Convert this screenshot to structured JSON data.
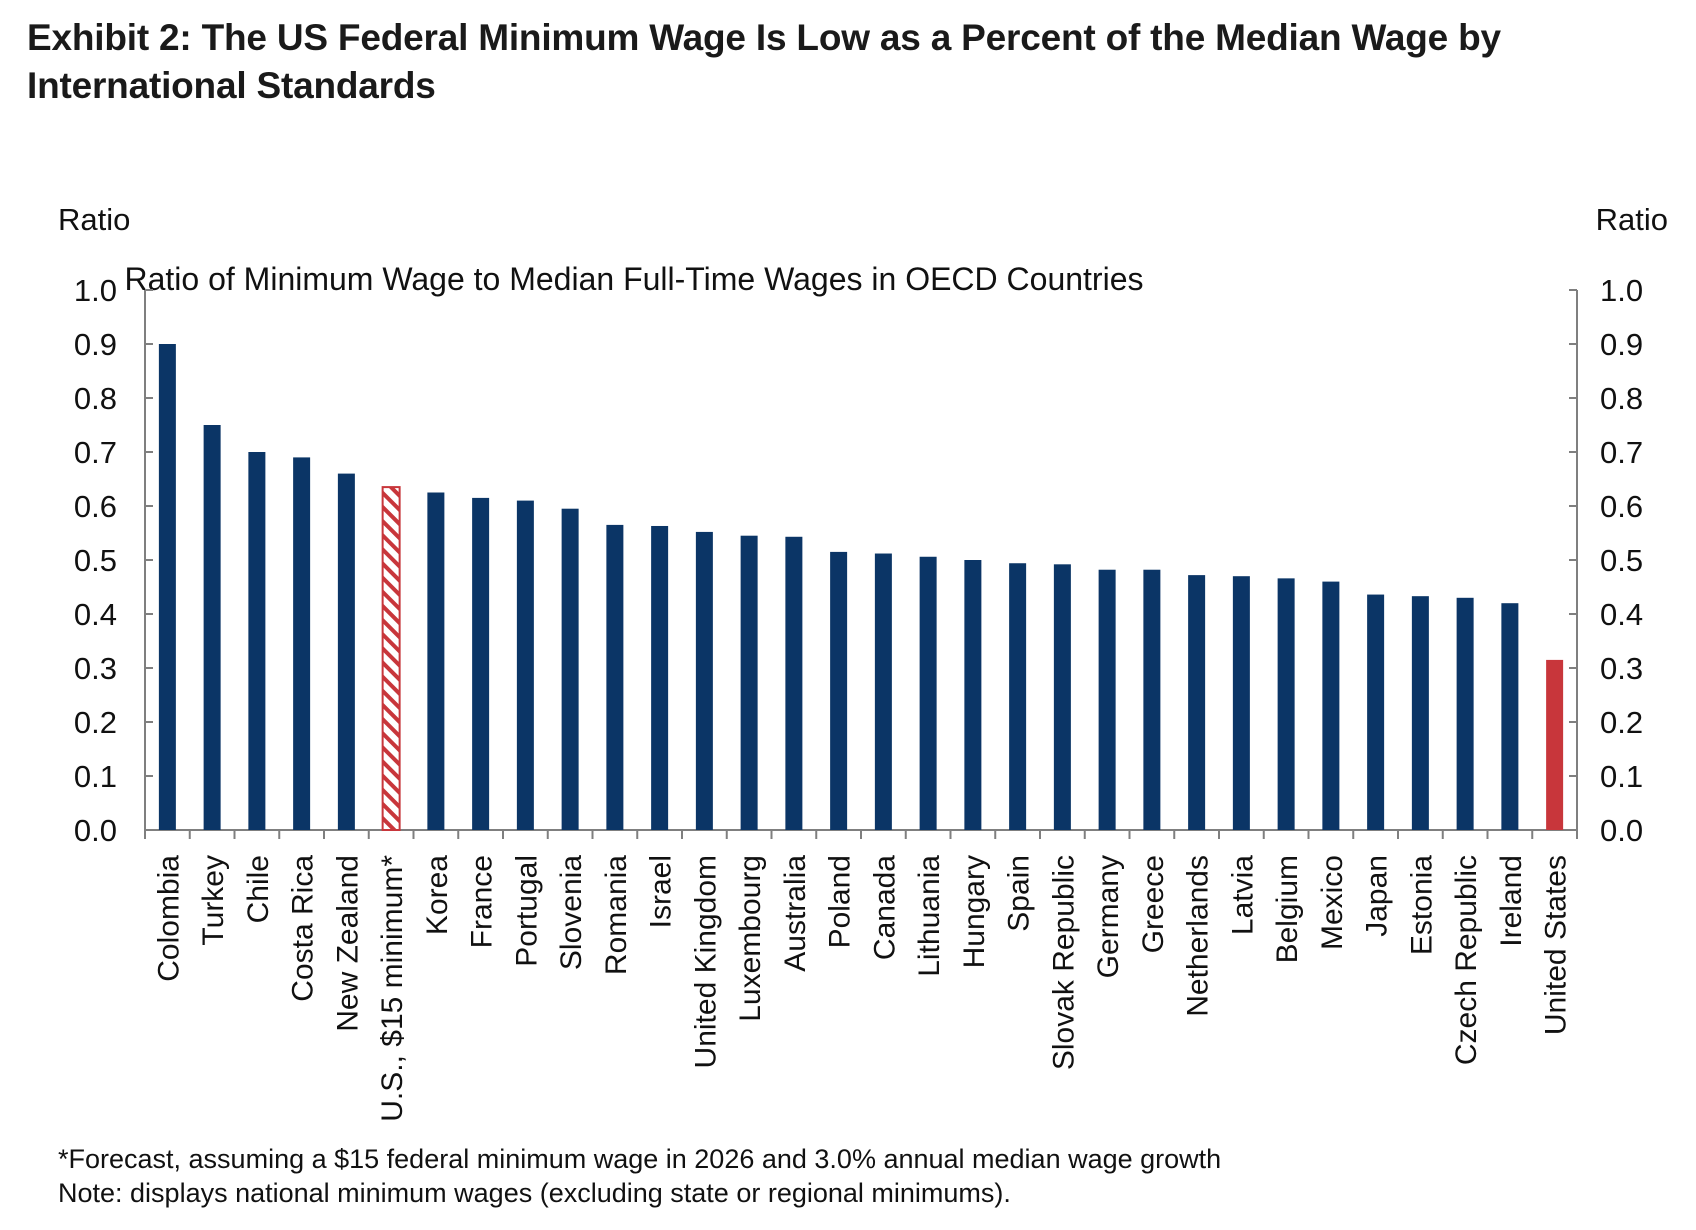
{
  "exhibit_title": "Exhibit 2: The US Federal Minimum Wage Is Low as a Percent of the Median Wage by International Standards",
  "footnotes": [
    "*Forecast, assuming a $15 federal minimum wage in 2026 and 3.0% annual median wage growth",
    "Note: displays national minimum wages (excluding state or regional minimums)."
  ],
  "colors": {
    "bar": "#0b3566",
    "highlight": "#c8363b",
    "forecast_hatch": "#c8363b"
  },
  "chart_data": {
    "type": "bar",
    "title": "Ratio of Minimum Wage to Median Full-Time Wages in OECD Countries",
    "ylabel_left": "Ratio",
    "ylabel_right": "Ratio",
    "ylim": [
      0.0,
      1.0
    ],
    "yticks": [
      "0.0",
      "0.1",
      "0.2",
      "0.3",
      "0.4",
      "0.5",
      "0.6",
      "0.7",
      "0.8",
      "0.9",
      "1.0"
    ],
    "grid": false,
    "legend": "none",
    "categories": [
      "Colombia",
      "Turkey",
      "Chile",
      "Costa Rica",
      "New Zealand",
      "U.S., $15 minimum*",
      "Korea",
      "France",
      "Portugal",
      "Slovenia",
      "Romania",
      "Israel",
      "United Kingdom",
      "Luxembourg",
      "Australia",
      "Poland",
      "Canada",
      "Lithuania",
      "Hungary",
      "Spain",
      "Slovak Republic",
      "Germany",
      "Greece",
      "Netherlands",
      "Latvia",
      "Belgium",
      "Mexico",
      "Japan",
      "Estonia",
      "Czech Republic",
      "Ireland",
      "United States"
    ],
    "values": [
      0.9,
      0.75,
      0.7,
      0.69,
      0.66,
      0.635,
      0.625,
      0.615,
      0.61,
      0.595,
      0.565,
      0.563,
      0.552,
      0.545,
      0.543,
      0.515,
      0.512,
      0.506,
      0.5,
      0.494,
      0.492,
      0.482,
      0.482,
      0.472,
      0.47,
      0.466,
      0.46,
      0.436,
      0.433,
      0.43,
      0.42,
      0.315
    ],
    "bar_styles": [
      "solid",
      "solid",
      "solid",
      "solid",
      "solid",
      "hatched",
      "solid",
      "solid",
      "solid",
      "solid",
      "solid",
      "solid",
      "solid",
      "solid",
      "solid",
      "solid",
      "solid",
      "solid",
      "solid",
      "solid",
      "solid",
      "solid",
      "solid",
      "solid",
      "solid",
      "solid",
      "solid",
      "solid",
      "solid",
      "solid",
      "solid",
      "highlight"
    ]
  }
}
